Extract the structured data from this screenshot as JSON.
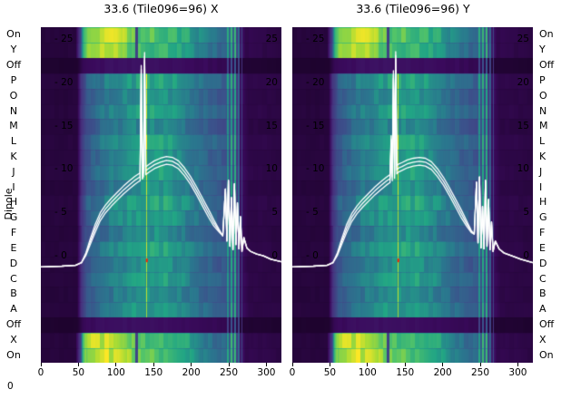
{
  "axis": {
    "dipole_label": "Dipole",
    "corner_label": "0"
  },
  "chart_data": {
    "type": "heatmap",
    "x_range": [
      0,
      320
    ],
    "x_ticks": [
      0,
      50,
      100,
      150,
      200,
      250,
      300
    ],
    "overlay_y_ticks_db": [
      25,
      20,
      15,
      10,
      5,
      0
    ],
    "legend": "none",
    "rows": [
      {
        "label": "On",
        "type": "band",
        "gain": 1.0
      },
      {
        "label": "Y",
        "type": "band",
        "gain": 0.97
      },
      {
        "label": "Off",
        "type": "off",
        "gain": 0.9
      },
      {
        "label": "P",
        "type": "dipole",
        "gain": 1.04
      },
      {
        "label": "O",
        "type": "dipole",
        "gain": 0.95
      },
      {
        "label": "N",
        "type": "dipole",
        "gain": 1.02
      },
      {
        "label": "M",
        "type": "dipole",
        "gain": 0.9
      },
      {
        "label": "L",
        "type": "dipole",
        "gain": 1.05
      },
      {
        "label": "K",
        "type": "dipole",
        "gain": 0.97
      },
      {
        "label": "J",
        "type": "dipole",
        "gain": 1.03
      },
      {
        "label": "I",
        "type": "dipole",
        "gain": 0.93
      },
      {
        "label": "H",
        "type": "dipole",
        "gain": 1.06
      },
      {
        "label": "G",
        "type": "dipole",
        "gain": 1.0
      },
      {
        "label": "F",
        "type": "dipole",
        "gain": 0.92
      },
      {
        "label": "E",
        "type": "dipole",
        "gain": 1.04
      },
      {
        "label": "D",
        "type": "dipole",
        "gain": 0.96
      },
      {
        "label": "C",
        "type": "dipole",
        "gain": 1.02
      },
      {
        "label": "B",
        "type": "dipole",
        "gain": 0.94
      },
      {
        "label": "A",
        "type": "dipole",
        "gain": 1.0
      },
      {
        "label": "Off",
        "type": "off",
        "gain": 0.9
      },
      {
        "label": "X",
        "type": "band",
        "gain": 0.98
      },
      {
        "label": "On",
        "type": "band",
        "gain": 1.0
      }
    ],
    "profiles": {
      "band": [
        [
          0,
          0.05
        ],
        [
          46,
          0.05
        ],
        [
          52,
          0.3
        ],
        [
          56,
          0.75
        ],
        [
          62,
          0.92
        ],
        [
          100,
          0.95
        ],
        [
          112,
          0.88
        ],
        [
          125,
          0.8
        ],
        [
          150,
          0.78
        ],
        [
          175,
          0.75
        ],
        [
          195,
          0.68
        ],
        [
          210,
          0.58
        ],
        [
          228,
          0.5
        ],
        [
          245,
          0.45
        ],
        [
          258,
          0.42
        ],
        [
          264,
          0.15
        ],
        [
          272,
          0.08
        ],
        [
          320,
          0.06
        ]
      ],
      "dipole": [
        [
          0,
          0.05
        ],
        [
          48,
          0.05
        ],
        [
          54,
          0.25
        ],
        [
          60,
          0.4
        ],
        [
          75,
          0.48
        ],
        [
          95,
          0.55
        ],
        [
          115,
          0.6
        ],
        [
          135,
          0.63
        ],
        [
          155,
          0.65
        ],
        [
          175,
          0.62
        ],
        [
          195,
          0.55
        ],
        [
          210,
          0.5
        ],
        [
          228,
          0.44
        ],
        [
          245,
          0.4
        ],
        [
          258,
          0.36
        ],
        [
          264,
          0.12
        ],
        [
          275,
          0.07
        ],
        [
          320,
          0.06
        ]
      ],
      "off": [
        [
          0,
          0.03
        ],
        [
          48,
          0.03
        ],
        [
          56,
          0.1
        ],
        [
          90,
          0.13
        ],
        [
          150,
          0.13
        ],
        [
          210,
          0.11
        ],
        [
          258,
          0.09
        ],
        [
          264,
          0.04
        ],
        [
          320,
          0.03
        ]
      ]
    },
    "stripes": [
      {
        "u": 248,
        "w": 1.0,
        "boost": 0.22
      },
      {
        "u": 253,
        "w": 0.9,
        "boost": 0.3
      },
      {
        "u": 258,
        "w": 1.0,
        "boost": 0.33
      },
      {
        "u": 263,
        "w": 1.2,
        "boost": 0.27
      },
      {
        "u": 267,
        "w": 0.8,
        "boost": 0.2
      },
      {
        "u": 140,
        "w": 0.8,
        "boost": 0.3,
        "rows": "dipole"
      }
    ],
    "notches": [
      {
        "u": 127,
        "w": 2.0,
        "mult": 0.38,
        "rows": "band"
      }
    ],
    "hot_pixel": {
      "u": 141,
      "y_frac": 0.695,
      "color": "#ff2400"
    },
    "colormap": [
      [
        0.0,
        "#14011e"
      ],
      [
        0.1,
        "#3a0a5c"
      ],
      [
        0.22,
        "#46327e"
      ],
      [
        0.38,
        "#3b528b"
      ],
      [
        0.52,
        "#2a788e"
      ],
      [
        0.66,
        "#21a585"
      ],
      [
        0.8,
        "#54c568"
      ],
      [
        0.9,
        "#a5db36"
      ],
      [
        1.0,
        "#fde725"
      ]
    ],
    "panels": [
      {
        "title": "33.6 (Tile096=96) X",
        "line": [
          [
            0,
            -1.2
          ],
          [
            28,
            -1.1
          ],
          [
            46,
            -1.0
          ],
          [
            54,
            -0.7
          ],
          [
            60,
            0.3
          ],
          [
            66,
            1.8
          ],
          [
            72,
            3.2
          ],
          [
            79,
            4.6
          ],
          [
            86,
            5.5
          ],
          [
            94,
            6.3
          ],
          [
            102,
            7.0
          ],
          [
            110,
            7.7
          ],
          [
            118,
            8.3
          ],
          [
            125,
            8.8
          ],
          [
            130,
            9.1
          ],
          [
            132,
            9.2
          ],
          [
            133.5,
            21.6
          ],
          [
            135,
            9.4
          ],
          [
            136.5,
            9.7
          ],
          [
            138,
            23.1
          ],
          [
            139.5,
            9.9
          ],
          [
            144,
            10.2
          ],
          [
            151,
            10.6
          ],
          [
            159,
            10.9
          ],
          [
            167,
            11.1
          ],
          [
            175,
            11.0
          ],
          [
            183,
            10.6
          ],
          [
            191,
            9.8
          ],
          [
            199,
            8.8
          ],
          [
            207,
            7.6
          ],
          [
            215,
            6.3
          ],
          [
            223,
            5.0
          ],
          [
            230,
            3.9
          ],
          [
            237,
            3.0
          ],
          [
            242,
            2.4
          ],
          [
            245.5,
            7.8
          ],
          [
            247.5,
            1.8
          ],
          [
            249.5,
            8.8
          ],
          [
            251.5,
            1.2
          ],
          [
            253.5,
            6.8
          ],
          [
            255.5,
            0.8
          ],
          [
            257.5,
            8.4
          ],
          [
            259.5,
            1.4
          ],
          [
            261.5,
            6.2
          ],
          [
            263.5,
            0.9
          ],
          [
            265.5,
            4.6
          ],
          [
            267.5,
            0.6
          ],
          [
            270,
            2.2
          ],
          [
            274,
            1.0
          ],
          [
            279,
            0.6
          ],
          [
            287,
            0.3
          ],
          [
            296,
            0.1
          ],
          [
            306,
            -0.3
          ],
          [
            320,
            -0.6
          ]
        ]
      },
      {
        "title": "33.6 (Tile096=96) Y",
        "line": [
          [
            0,
            -1.2
          ],
          [
            28,
            -1.1
          ],
          [
            46,
            -1.0
          ],
          [
            54,
            -0.7
          ],
          [
            60,
            0.3
          ],
          [
            66,
            1.8
          ],
          [
            72,
            3.2
          ],
          [
            79,
            4.5
          ],
          [
            86,
            5.4
          ],
          [
            94,
            6.2
          ],
          [
            102,
            6.9
          ],
          [
            110,
            7.6
          ],
          [
            118,
            8.2
          ],
          [
            125,
            8.7
          ],
          [
            130,
            9.0
          ],
          [
            131.5,
            13.5
          ],
          [
            133,
            9.2
          ],
          [
            134.5,
            21.0
          ],
          [
            136,
            9.5
          ],
          [
            137.5,
            23.2
          ],
          [
            139,
            10.0
          ],
          [
            141,
            10.2
          ],
          [
            146,
            10.4
          ],
          [
            153,
            10.7
          ],
          [
            161,
            10.9
          ],
          [
            169,
            11.0
          ],
          [
            177,
            10.9
          ],
          [
            185,
            10.5
          ],
          [
            193,
            9.7
          ],
          [
            201,
            8.7
          ],
          [
            209,
            7.5
          ],
          [
            217,
            6.2
          ],
          [
            225,
            4.9
          ],
          [
            232,
            3.8
          ],
          [
            238,
            2.9
          ],
          [
            242,
            2.6
          ],
          [
            245,
            8.6
          ],
          [
            247,
            1.6
          ],
          [
            249,
            9.2
          ],
          [
            251,
            1.0
          ],
          [
            253,
            5.8
          ],
          [
            255,
            0.9
          ],
          [
            257,
            8.8
          ],
          [
            259,
            1.2
          ],
          [
            261,
            6.6
          ],
          [
            263,
            0.8
          ],
          [
            265,
            4.0
          ],
          [
            267,
            0.6
          ],
          [
            270,
            1.8
          ],
          [
            275,
            0.9
          ],
          [
            282,
            0.4
          ],
          [
            292,
            0.1
          ],
          [
            304,
            -0.3
          ],
          [
            320,
            -0.7
          ]
        ]
      }
    ]
  }
}
